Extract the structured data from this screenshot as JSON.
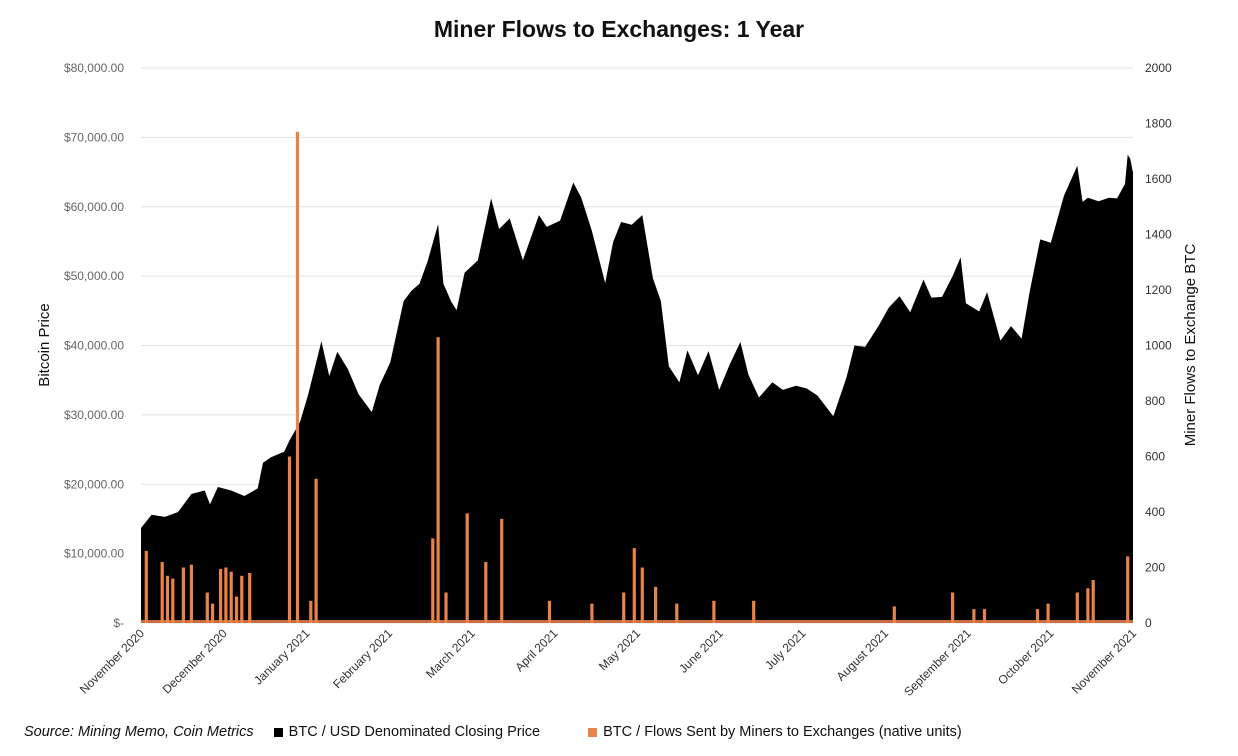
{
  "chart_data": {
    "type": "area",
    "title": "Miner Flows to Exchanges: 1 Year",
    "y_left_label": "Bitcoin Price",
    "y_right_label": "Miner Flows to Exchange BTC",
    "y_left_range": [
      0,
      80000
    ],
    "y_right_range": [
      0,
      2000
    ],
    "y_left_ticks": [
      "$-",
      "$10,000.00",
      "$20,000.00",
      "$30,000.00",
      "$40,000.00",
      "$50,000.00",
      "$60,000.00",
      "$70,000.00",
      "$80,000.00"
    ],
    "y_right_ticks": [
      "0",
      "200",
      "400",
      "600",
      "800",
      "1000",
      "1200",
      "1400",
      "1600",
      "1800",
      "2000"
    ],
    "x_tick_labels": [
      "November 2020",
      "December 2020",
      "January 2021",
      "February 2021",
      "March 2021",
      "April 2021",
      "May 2021",
      "June 2021",
      "July 2021",
      "August 2021",
      "September 2021",
      "October 2021",
      "November 2021"
    ],
    "x_range": [
      "2020-11-01",
      "2021-11-10"
    ],
    "grid": true,
    "legend_position": "bottom",
    "series": [
      {
        "name": "BTC / USD Denominated Closing Price",
        "type": "area",
        "axis": "left",
        "color": "#000000",
        "points": [
          [
            "2020-11-01",
            13700
          ],
          [
            "2020-11-05",
            15600
          ],
          [
            "2020-11-10",
            15300
          ],
          [
            "2020-11-15",
            16000
          ],
          [
            "2020-11-20",
            18600
          ],
          [
            "2020-11-25",
            19100
          ],
          [
            "2020-11-27",
            17100
          ],
          [
            "2020-11-30",
            19600
          ],
          [
            "2020-12-05",
            19100
          ],
          [
            "2020-12-10",
            18300
          ],
          [
            "2020-12-15",
            19400
          ],
          [
            "2020-12-17",
            23100
          ],
          [
            "2020-12-20",
            23900
          ],
          [
            "2020-12-25",
            24700
          ],
          [
            "2020-12-27",
            26300
          ],
          [
            "2020-12-31",
            29000
          ],
          [
            "2021-01-03",
            32900
          ],
          [
            "2021-01-08",
            40600
          ],
          [
            "2021-01-11",
            35600
          ],
          [
            "2021-01-14",
            39100
          ],
          [
            "2021-01-18",
            36600
          ],
          [
            "2021-01-22",
            33000
          ],
          [
            "2021-01-27",
            30400
          ],
          [
            "2021-01-30",
            34300
          ],
          [
            "2021-02-03",
            37600
          ],
          [
            "2021-02-08",
            46400
          ],
          [
            "2021-02-11",
            47900
          ],
          [
            "2021-02-14",
            48900
          ],
          [
            "2021-02-17",
            52100
          ],
          [
            "2021-02-21",
            57500
          ],
          [
            "2021-02-23",
            48900
          ],
          [
            "2021-02-26",
            46300
          ],
          [
            "2021-02-28",
            45100
          ],
          [
            "2021-03-03",
            50500
          ],
          [
            "2021-03-08",
            52300
          ],
          [
            "2021-03-13",
            61200
          ],
          [
            "2021-03-16",
            56800
          ],
          [
            "2021-03-20",
            58300
          ],
          [
            "2021-03-25",
            52300
          ],
          [
            "2021-03-31",
            58800
          ],
          [
            "2021-04-03",
            57100
          ],
          [
            "2021-04-08",
            58000
          ],
          [
            "2021-04-13",
            63500
          ],
          [
            "2021-04-16",
            61300
          ],
          [
            "2021-04-20",
            56500
          ],
          [
            "2021-04-25",
            49000
          ],
          [
            "2021-04-28",
            54900
          ],
          [
            "2021-05-01",
            57800
          ],
          [
            "2021-05-05",
            57400
          ],
          [
            "2021-05-09",
            58800
          ],
          [
            "2021-05-13",
            49700
          ],
          [
            "2021-05-16",
            46400
          ],
          [
            "2021-05-19",
            37000
          ],
          [
            "2021-05-23",
            34700
          ],
          [
            "2021-05-26",
            39300
          ],
          [
            "2021-05-30",
            35700
          ],
          [
            "2021-06-03",
            39200
          ],
          [
            "2021-06-07",
            33600
          ],
          [
            "2021-06-11",
            37300
          ],
          [
            "2021-06-15",
            40500
          ],
          [
            "2021-06-18",
            35800
          ],
          [
            "2021-06-22",
            32500
          ],
          [
            "2021-06-27",
            34700
          ],
          [
            "2021-07-01",
            33600
          ],
          [
            "2021-07-06",
            34200
          ],
          [
            "2021-07-10",
            33800
          ],
          [
            "2021-07-14",
            32800
          ],
          [
            "2021-07-20",
            29800
          ],
          [
            "2021-07-25",
            35400
          ],
          [
            "2021-07-28",
            40000
          ],
          [
            "2021-08-01",
            39800
          ],
          [
            "2021-08-06",
            42800
          ],
          [
            "2021-08-10",
            45500
          ],
          [
            "2021-08-14",
            47100
          ],
          [
            "2021-08-18",
            44800
          ],
          [
            "2021-08-23",
            49500
          ],
          [
            "2021-08-26",
            46900
          ],
          [
            "2021-08-30",
            47000
          ],
          [
            "2021-09-03",
            50000
          ],
          [
            "2021-09-06",
            52700
          ],
          [
            "2021-09-08",
            46100
          ],
          [
            "2021-09-13",
            44900
          ],
          [
            "2021-09-16",
            47700
          ],
          [
            "2021-09-21",
            40700
          ],
          [
            "2021-09-25",
            42800
          ],
          [
            "2021-09-29",
            41000
          ],
          [
            "2021-10-02",
            47700
          ],
          [
            "2021-10-06",
            55300
          ],
          [
            "2021-10-10",
            54800
          ],
          [
            "2021-10-15",
            61600
          ],
          [
            "2021-10-20",
            65900
          ],
          [
            "2021-10-22",
            60700
          ],
          [
            "2021-10-24",
            61300
          ],
          [
            "2021-10-28",
            60800
          ],
          [
            "2021-11-01",
            61300
          ],
          [
            "2021-11-04",
            61200
          ],
          [
            "2021-11-07",
            63300
          ],
          [
            "2021-11-08",
            67500
          ],
          [
            "2021-11-09",
            66900
          ],
          [
            "2021-11-10",
            64900
          ]
        ]
      },
      {
        "name": "BTC / Flows Sent by Miners to Exchanges (native units)",
        "type": "bar",
        "axis": "right",
        "color": "#E8834A",
        "points": [
          [
            "2020-11-03",
            260
          ],
          [
            "2020-11-09",
            220
          ],
          [
            "2020-11-11",
            170
          ],
          [
            "2020-11-13",
            160
          ],
          [
            "2020-11-17",
            200
          ],
          [
            "2020-11-20",
            210
          ],
          [
            "2020-11-26",
            110
          ],
          [
            "2020-11-28",
            70
          ],
          [
            "2020-12-01",
            195
          ],
          [
            "2020-12-03",
            200
          ],
          [
            "2020-12-05",
            185
          ],
          [
            "2020-12-07",
            95
          ],
          [
            "2020-12-09",
            170
          ],
          [
            "2020-12-12",
            180
          ],
          [
            "2020-12-27",
            600
          ],
          [
            "2020-12-30",
            1770
          ],
          [
            "2021-01-04",
            80
          ],
          [
            "2021-01-06",
            520
          ],
          [
            "2021-02-19",
            305
          ],
          [
            "2021-02-21",
            1030
          ],
          [
            "2021-02-24",
            110
          ],
          [
            "2021-03-04",
            395
          ],
          [
            "2021-03-11",
            220
          ],
          [
            "2021-03-17",
            375
          ],
          [
            "2021-04-04",
            80
          ],
          [
            "2021-04-20",
            70
          ],
          [
            "2021-05-02",
            110
          ],
          [
            "2021-05-06",
            270
          ],
          [
            "2021-05-09",
            200
          ],
          [
            "2021-05-14",
            130
          ],
          [
            "2021-05-22",
            70
          ],
          [
            "2021-06-05",
            80
          ],
          [
            "2021-06-20",
            80
          ],
          [
            "2021-08-12",
            60
          ],
          [
            "2021-09-03",
            110
          ],
          [
            "2021-09-11",
            50
          ],
          [
            "2021-09-15",
            50
          ],
          [
            "2021-10-05",
            50
          ],
          [
            "2021-10-09",
            70
          ],
          [
            "2021-10-20",
            110
          ],
          [
            "2021-10-24",
            125
          ],
          [
            "2021-10-26",
            155
          ],
          [
            "2021-11-08",
            240
          ]
        ]
      }
    ],
    "source": "Source: Mining Memo, Coin Metrics"
  }
}
